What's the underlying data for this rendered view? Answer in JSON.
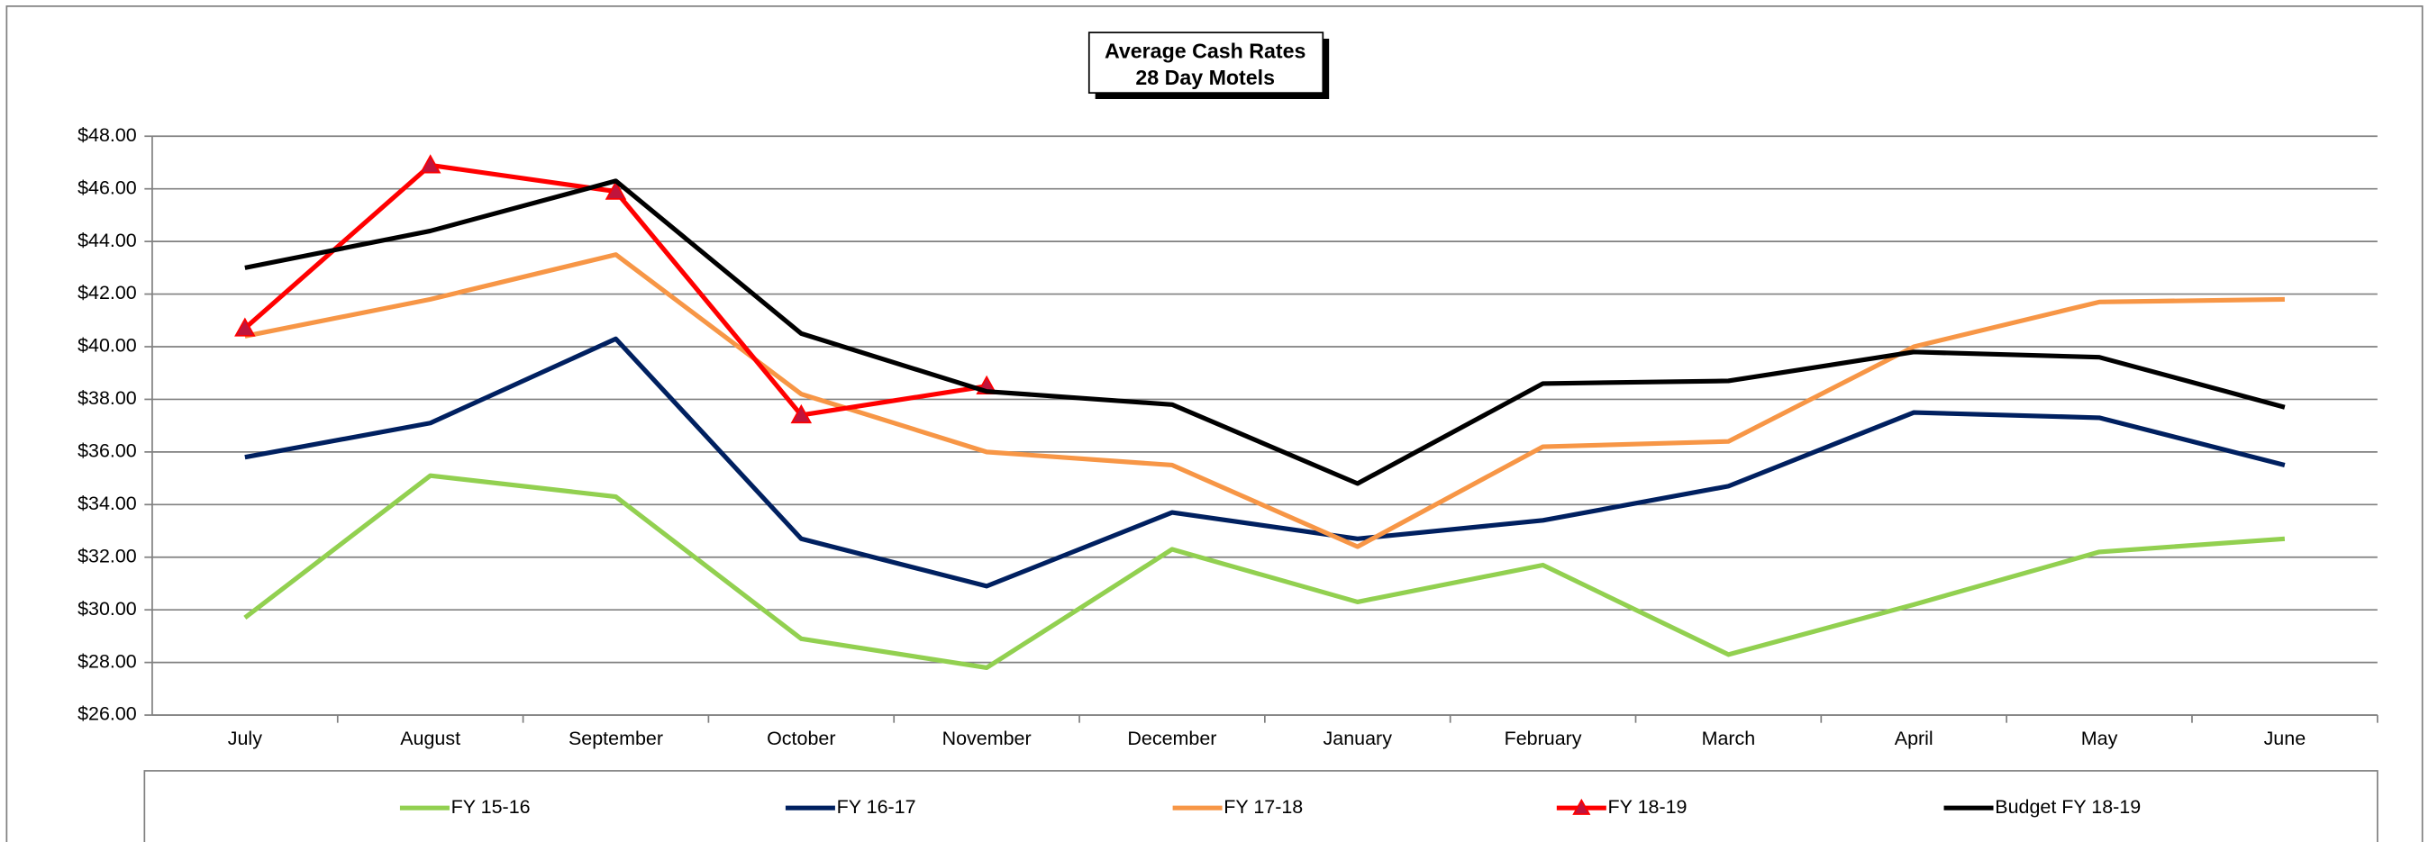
{
  "chart_data": {
    "type": "line",
    "title": [
      "Average Cash Rates",
      "28 Day Motels"
    ],
    "categories": [
      "July",
      "August",
      "September",
      "October",
      "November",
      "December",
      "January",
      "February",
      "March",
      "April",
      "May",
      "June"
    ],
    "series": [
      {
        "name": "FY 15-16",
        "color": "#92d050",
        "values": [
          29.7,
          35.1,
          34.3,
          28.9,
          27.8,
          32.3,
          30.3,
          31.7,
          28.3,
          30.2,
          32.2,
          32.7
        ]
      },
      {
        "name": "FY 16-17",
        "color": "#002060",
        "values": [
          35.8,
          37.1,
          40.3,
          32.7,
          30.9,
          33.7,
          32.7,
          33.4,
          34.7,
          37.5,
          37.3,
          35.5
        ]
      },
      {
        "name": "FY 17-18",
        "color": "#f79646",
        "values": [
          40.4,
          41.8,
          43.5,
          38.2,
          36.0,
          35.5,
          32.4,
          36.2,
          36.4,
          40.0,
          41.7,
          41.8
        ]
      },
      {
        "name": "FY 18-19",
        "color": "#ff0000",
        "marker": "triangle",
        "values": [
          40.7,
          46.9,
          45.9,
          37.4,
          38.5,
          null,
          null,
          null,
          null,
          null,
          null,
          null
        ]
      },
      {
        "name": "Budget FY 18-19",
        "color": "#000000",
        "values": [
          43.0,
          44.4,
          46.3,
          40.5,
          38.3,
          37.8,
          34.8,
          38.6,
          38.7,
          39.8,
          39.6,
          37.7
        ]
      }
    ],
    "ylim": [
      26,
      48
    ],
    "yticks": [
      {
        "value": 26,
        "label": "$26.00"
      },
      {
        "value": 28,
        "label": "$28.00"
      },
      {
        "value": 30,
        "label": "$30.00"
      },
      {
        "value": 32,
        "label": "$32.00"
      },
      {
        "value": 34,
        "label": "$34.00"
      },
      {
        "value": 36,
        "label": "$36.00"
      },
      {
        "value": 38,
        "label": "$38.00"
      },
      {
        "value": 40,
        "label": "$40.00"
      },
      {
        "value": 42,
        "label": "$42.00"
      },
      {
        "value": 44,
        "label": "$44.00"
      },
      {
        "value": 46,
        "label": "$46.00"
      },
      {
        "value": 48,
        "label": "$48.00"
      }
    ],
    "grid": true,
    "legend": "bottom"
  }
}
